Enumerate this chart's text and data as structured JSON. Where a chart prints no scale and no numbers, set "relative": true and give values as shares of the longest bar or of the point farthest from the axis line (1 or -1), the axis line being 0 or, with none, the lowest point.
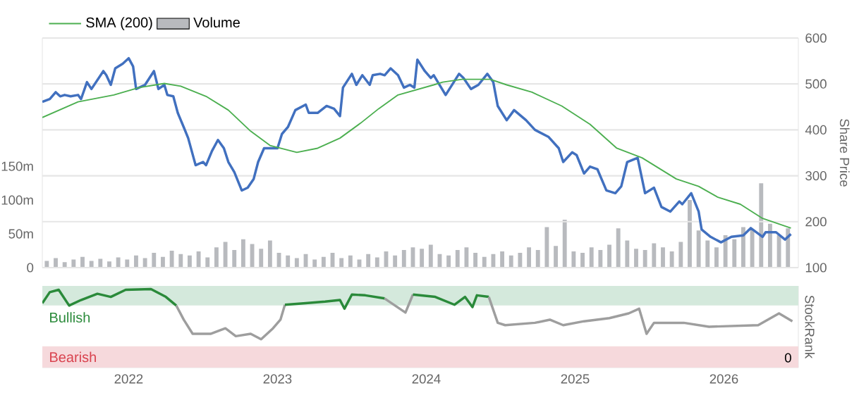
{
  "chart_data": [
    {
      "type": "line",
      "ylabel": "Share Price",
      "xlim": [
        2021.42,
        2026.5
      ],
      "ylim": [
        100,
        600
      ],
      "yticks": [
        100,
        200,
        300,
        400,
        500,
        600
      ],
      "y2lim": [
        0,
        340
      ],
      "y2ticks": [
        0,
        {
          "value": 50,
          "label": "50m"
        },
        {
          "value": 100,
          "label": "100m"
        },
        {
          "value": 150,
          "label": "150m"
        }
      ],
      "grid": "y",
      "legend": "top left",
      "tick_labels": "y",
      "series": [
        {
          "color": "#4170bf",
          "x": [
            2021.42,
            2021.47,
            2021.51,
            2021.54,
            2021.57,
            2021.61,
            2021.66,
            2021.68,
            2021.72,
            2021.75,
            2021.83,
            2021.85,
            2021.88,
            2021.91,
            2021.96,
            2022.0,
            2022.03,
            2022.05,
            2022.11,
            2022.17,
            2022.2,
            2022.24,
            2022.26,
            2022.3,
            2022.33,
            2022.37,
            2022.4,
            2022.45,
            2022.5,
            2022.52,
            2022.56,
            2022.6,
            2022.64,
            2022.67,
            2022.71,
            2022.76,
            2022.8,
            2022.84,
            2022.87,
            2022.91,
            2023.0,
            2023.03,
            2023.07,
            2023.12,
            2023.19,
            2023.21,
            2023.27,
            2023.33,
            2023.38,
            2023.42,
            2023.44,
            2023.5,
            2023.53,
            2023.57,
            2023.62,
            2023.64,
            2023.69,
            2023.72,
            2023.76,
            2023.81,
            2023.85,
            2023.89,
            2023.92,
            2023.94,
            2023.99,
            2024.03,
            2024.05,
            2024.13,
            2024.22,
            2024.25,
            2024.3,
            2024.35,
            2024.41,
            2024.45,
            2024.48,
            2024.54,
            2024.59,
            2024.67,
            2024.73,
            2024.82,
            2024.89,
            2024.92,
            2024.98,
            2025.01,
            2025.06,
            2025.1,
            2025.15,
            2025.21,
            2025.27,
            2025.31,
            2025.35,
            2025.42,
            2025.47,
            2025.53,
            2025.58,
            2025.64,
            2025.7,
            2025.72,
            2025.78,
            2025.83,
            2025.85,
            2025.91,
            2025.98,
            2026.05,
            2026.13,
            2026.18,
            2026.26,
            2026.28,
            2026.35,
            2026.41,
            2026.45
          ],
          "values": [
            461,
            467,
            482,
            473,
            476,
            473,
            476,
            467,
            504,
            489,
            528,
            519,
            498,
            534,
            544,
            556,
            538,
            489,
            498,
            528,
            489,
            498,
            476,
            473,
            437,
            406,
            382,
            323,
            330,
            323,
            354,
            378,
            360,
            330,
            308,
            268,
            274,
            293,
            330,
            360,
            360,
            391,
            406,
            443,
            455,
            437,
            437,
            452,
            446,
            430,
            492,
            522,
            498,
            519,
            498,
            519,
            522,
            519,
            534,
            519,
            492,
            498,
            492,
            553,
            528,
            513,
            519,
            476,
            522,
            513,
            489,
            498,
            522,
            504,
            452,
            421,
            443,
            421,
            400,
            385,
            360,
            330,
            351,
            345,
            305,
            320,
            314,
            268,
            262,
            277,
            330,
            339,
            262,
            274,
            232,
            222,
            244,
            238,
            262,
            222,
            183,
            167,
            155,
            167,
            170,
            186,
            167,
            177,
            177,
            161,
            173
          ]
        },
        {
          "name": "SMA (200)",
          "color": "#4caf50",
          "x": [
            2021.42,
            2021.66,
            2021.9,
            2022.07,
            2022.24,
            2022.35,
            2022.52,
            2022.67,
            2022.82,
            2022.95,
            2023.13,
            2023.27,
            2023.42,
            2023.56,
            2023.68,
            2023.81,
            2024.05,
            2024.11,
            2024.24,
            2024.43,
            2024.54,
            2024.71,
            2024.91,
            2025.1,
            2025.28,
            2025.45,
            2025.68,
            2025.83,
            2025.96,
            2026.11,
            2026.26,
            2026.45
          ],
          "values": [
            427,
            461,
            476,
            492,
            501,
            495,
            473,
            443,
            397,
            366,
            351,
            360,
            382,
            415,
            446,
            476,
            498,
            504,
            510,
            510,
            498,
            482,
            452,
            412,
            360,
            339,
            293,
            277,
            253,
            238,
            207,
            186
          ]
        },
        {
          "name": "Volume",
          "type": "bar",
          "axis": "y2",
          "color": "#b8babe",
          "x": [
            2021.45,
            2021.51,
            2021.57,
            2021.63,
            2021.69,
            2021.75,
            2021.81,
            2021.87,
            2021.93,
            2021.99,
            2022.05,
            2022.11,
            2022.17,
            2022.23,
            2022.29,
            2022.35,
            2022.41,
            2022.47,
            2022.53,
            2022.59,
            2022.65,
            2022.71,
            2022.77,
            2022.83,
            2022.89,
            2022.95,
            2023.01,
            2023.07,
            2023.13,
            2023.19,
            2023.25,
            2023.31,
            2023.37,
            2023.43,
            2023.49,
            2023.55,
            2023.61,
            2023.67,
            2023.73,
            2023.79,
            2023.85,
            2023.91,
            2023.97,
            2024.03,
            2024.09,
            2024.15,
            2024.21,
            2024.27,
            2024.33,
            2024.39,
            2024.45,
            2024.51,
            2024.57,
            2024.63,
            2024.69,
            2024.75,
            2024.81,
            2024.87,
            2024.93,
            2024.99,
            2025.05,
            2025.11,
            2025.17,
            2025.23,
            2025.29,
            2025.35,
            2025.41,
            2025.47,
            2025.53,
            2025.59,
            2025.65,
            2025.71,
            2025.77,
            2025.83,
            2025.89,
            2025.95,
            2026.01,
            2026.07,
            2026.13,
            2026.19,
            2026.25,
            2026.31,
            2026.37,
            2026.43
          ],
          "values": [
            10,
            14,
            8,
            12,
            16,
            10,
            13,
            9,
            15,
            12,
            18,
            14,
            22,
            16,
            25,
            20,
            18,
            24,
            15,
            30,
            38,
            26,
            42,
            35,
            28,
            40,
            22,
            18,
            14,
            20,
            12,
            16,
            22,
            14,
            18,
            12,
            20,
            15,
            24,
            18,
            26,
            30,
            28,
            34,
            20,
            18,
            26,
            30,
            22,
            16,
            20,
            24,
            18,
            22,
            30,
            26,
            60,
            32,
            71,
            24,
            22,
            30,
            26,
            34,
            58,
            40,
            28,
            26,
            36,
            30,
            24,
            38,
            100,
            55,
            40,
            30,
            48,
            42,
            60,
            56,
            125,
            65,
            48,
            58
          ]
        }
      ]
    },
    {
      "type": "line",
      "relative": true,
      "ylabel": "StockRank",
      "xlim": [
        2021.42,
        2026.5
      ],
      "xticks": [
        2022,
        2023,
        2024,
        2025,
        2026
      ],
      "annotations": [
        "0"
      ],
      "bands": [
        {
          "axis": "y",
          "from": 0.79,
          "to": 1.04,
          "label": "Bullish",
          "color": "#d4e9dc"
        },
        {
          "axis": "y",
          "from": 0,
          "to": 0.27,
          "label": "Bearish",
          "color": "#f6d9dc"
        }
      ],
      "series": [
        {
          "color": "#2a8a3a",
          "x": [
            2021.42,
            2021.47,
            2021.53,
            2021.6,
            2021.68,
            2021.79,
            2021.88,
            2021.98,
            2022.15,
            2022.25,
            2022.32
          ],
          "values": [
            0.82,
            0.96,
            0.99,
            0.79,
            0.86,
            0.94,
            0.9,
            0.99,
            1,
            0.9,
            0.79
          ]
        },
        {
          "color": "#9e9e9e",
          "x": [
            2022.32,
            2022.37,
            2022.43,
            2022.55,
            2022.65,
            2022.72,
            2022.82,
            2022.89,
            2022.97,
            2023.02,
            2023.05
          ],
          "values": [
            0.79,
            0.61,
            0.43,
            0.43,
            0.5,
            0.4,
            0.43,
            0.36,
            0.5,
            0.61,
            0.8
          ]
        },
        {
          "color": "#2a8a3a",
          "x": [
            2023.05,
            2023.19,
            2023.32,
            2023.42,
            2023.45,
            2023.5,
            2023.59,
            2023.72
          ],
          "values": [
            0.8,
            0.82,
            0.84,
            0.86,
            0.75,
            0.93,
            0.92,
            0.88
          ]
        },
        {
          "color": "#9e9e9e",
          "x": [
            2023.72,
            2023.86,
            2023.91
          ],
          "values": [
            0.88,
            0.7,
            0.93
          ]
        },
        {
          "color": "#2a8a3a",
          "x": [
            2023.91,
            2024.06,
            2024.19,
            2024.26,
            2024.31,
            2024.34,
            2024.42
          ],
          "values": [
            0.93,
            0.9,
            0.8,
            0.9,
            0.77,
            0.92,
            0.9
          ]
        },
        {
          "color": "#9e9e9e",
          "x": [
            2024.42,
            2024.48,
            2024.53,
            2024.73,
            2024.83,
            2024.92,
            2025.06,
            2025.23,
            2025.36,
            2025.43,
            2025.48,
            2025.53,
            2025.73,
            2025.9,
            2026.23,
            2026.37,
            2026.46
          ],
          "values": [
            0.9,
            0.57,
            0.54,
            0.57,
            0.61,
            0.54,
            0.59,
            0.63,
            0.69,
            0.75,
            0.43,
            0.57,
            0.57,
            0.52,
            0.54,
            0.69,
            0.59
          ]
        }
      ]
    }
  ]
}
